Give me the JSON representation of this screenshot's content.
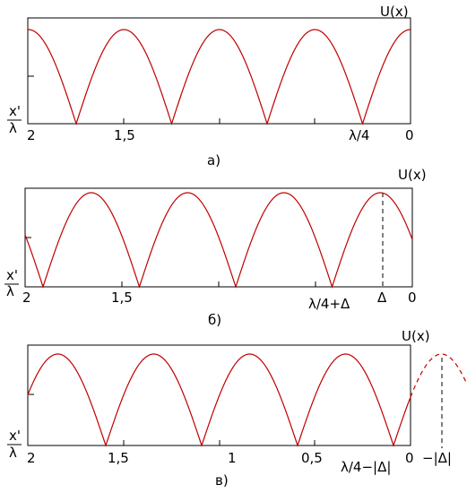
{
  "panels": [
    {
      "y_label": "U(x)",
      "x_label_top": "x'",
      "x_label_bottom": "λ",
      "tick_labels": [
        "2",
        "1,5",
        "λ/4",
        "0"
      ],
      "caption": "а)"
    },
    {
      "y_label": "U(x)",
      "x_label_top": "x'",
      "x_label_bottom": "λ",
      "tick_labels": [
        "2",
        "1,5",
        "λ/4+Δ",
        "Δ",
        "0"
      ],
      "caption": "б)"
    },
    {
      "y_label": "U(x)",
      "x_label_top": "x'",
      "x_label_bottom": "λ",
      "tick_labels": [
        "2",
        "1,5",
        "1",
        "0,5",
        "λ/4−|Δ|",
        "0",
        "−|Δ|"
      ],
      "caption": "в)"
    }
  ]
}
